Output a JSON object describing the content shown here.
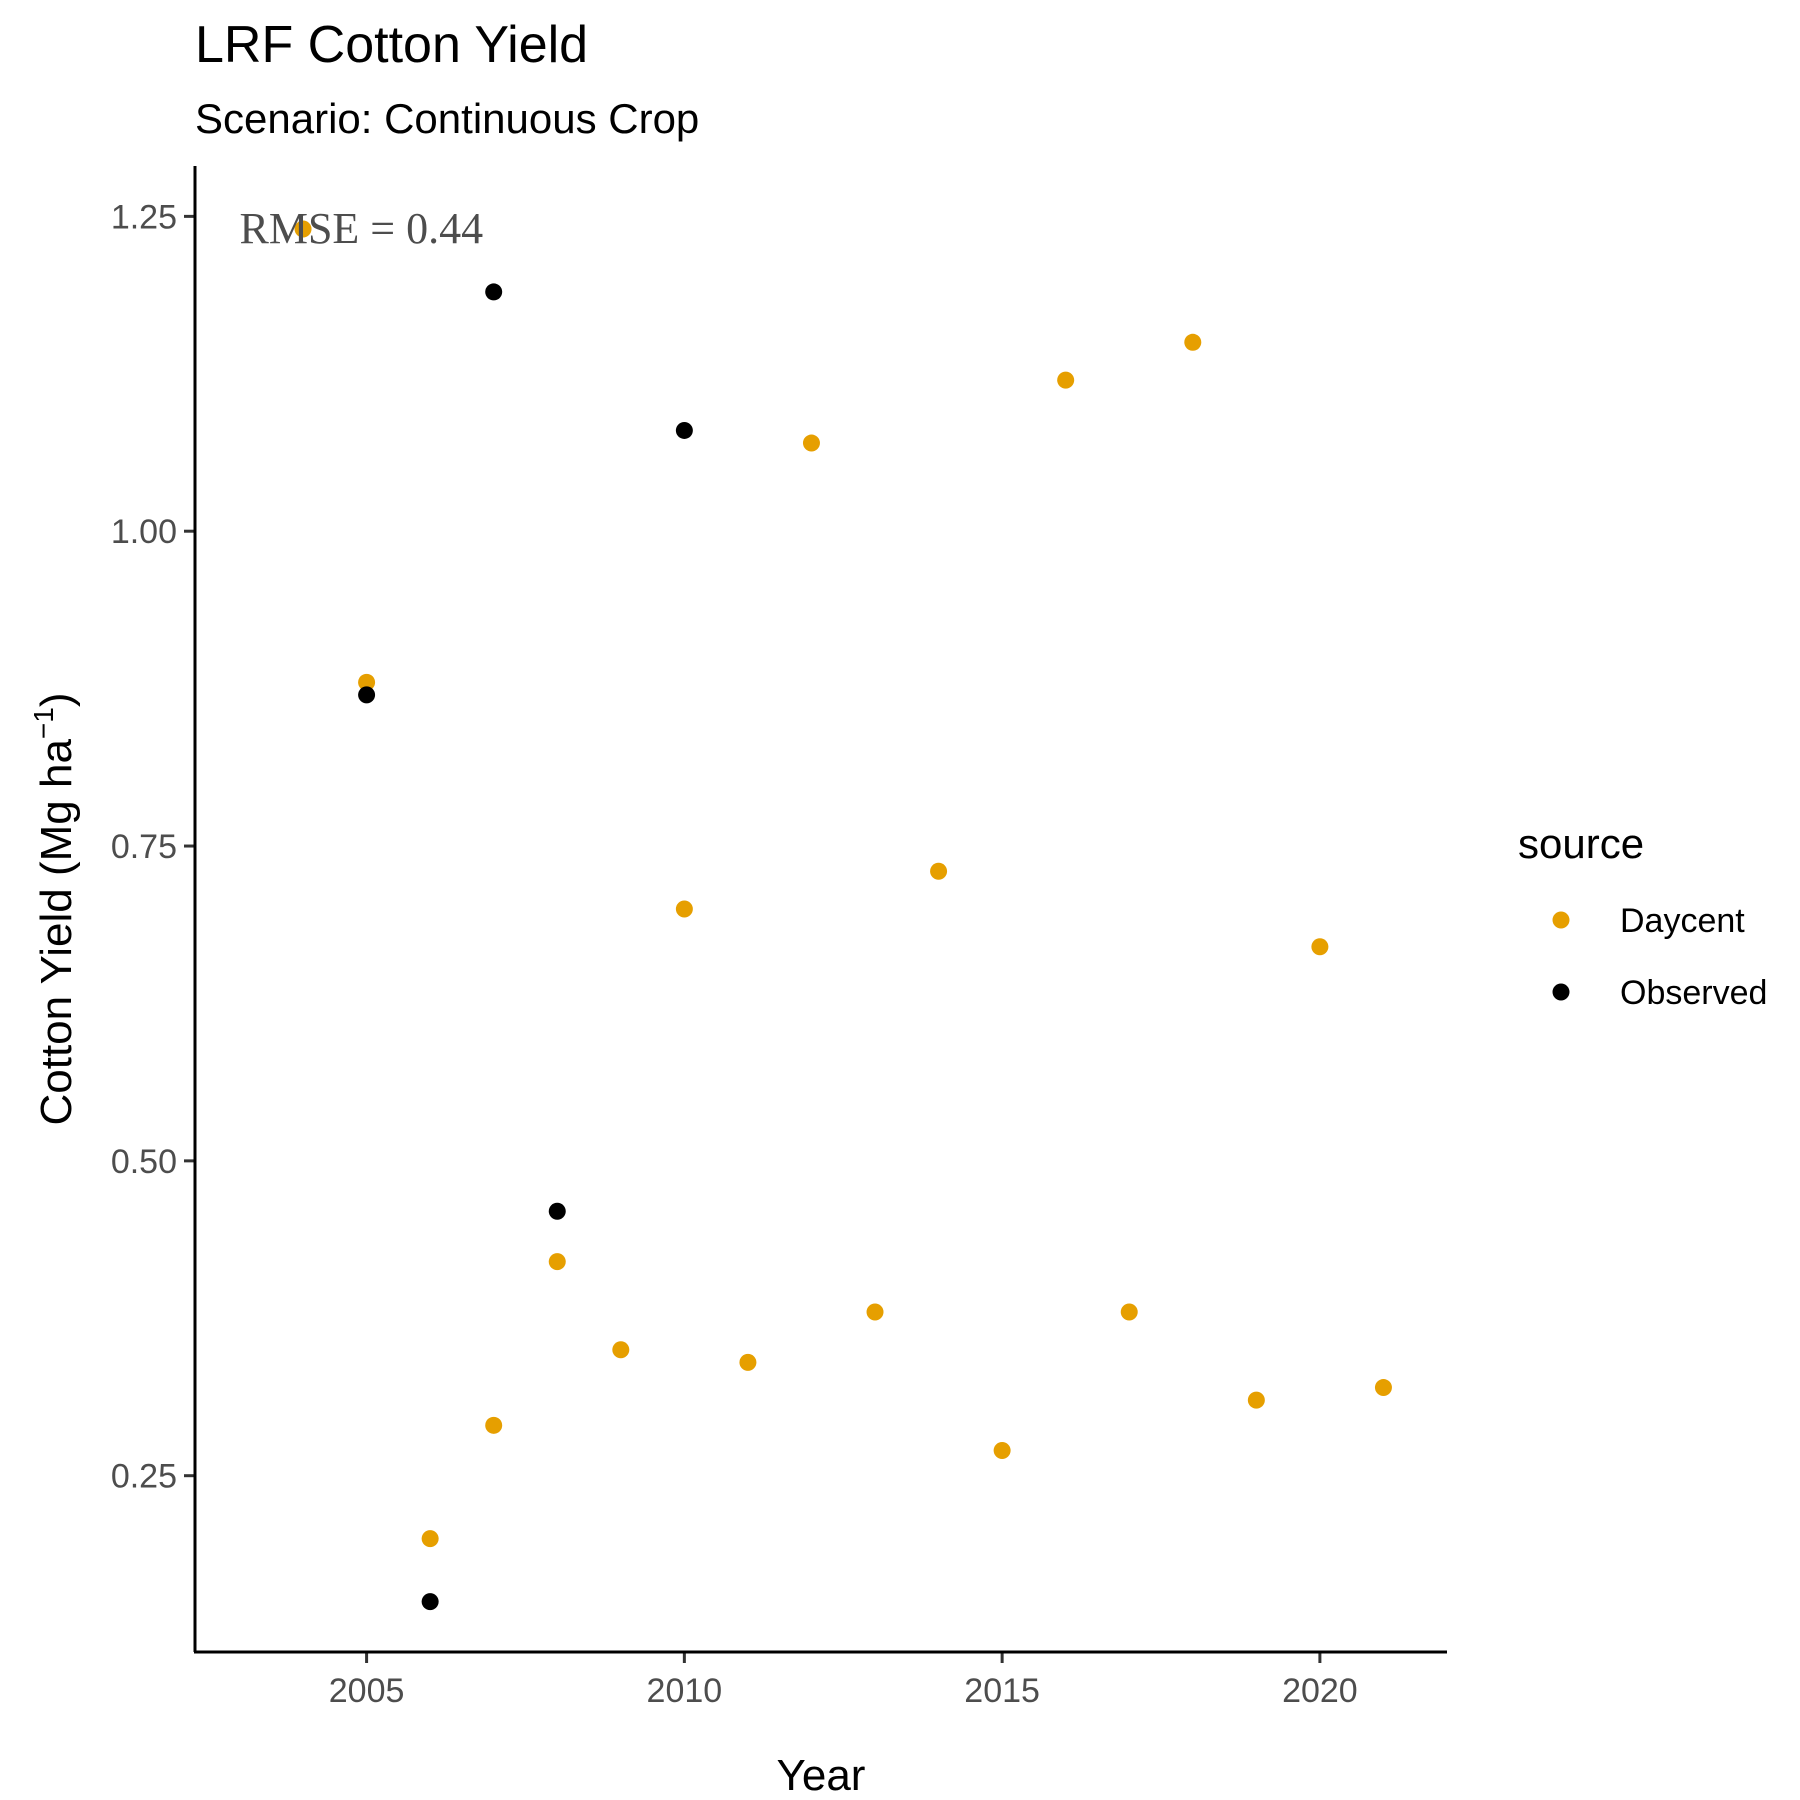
{
  "chart_data": {
    "type": "scatter",
    "title": "LRF Cotton Yield",
    "subtitle": "Scenario: Continuous Crop",
    "xlabel": "Year",
    "ylabel_main": "Cotton Yield (Mg ha",
    "ylabel_sup": "−1",
    "ylabel_close": ")",
    "xlim": [
      2002.3,
      2022.0
    ],
    "ylim": [
      0.11,
      1.29
    ],
    "x_ticks": [
      2005,
      2010,
      2015,
      2020
    ],
    "x_tick_labels": [
      "2005",
      "2010",
      "2015",
      "2020"
    ],
    "y_ticks": [
      0.25,
      0.5,
      0.75,
      1.0,
      1.25
    ],
    "y_tick_labels": [
      "0.25",
      "0.50",
      "0.75",
      "1.00",
      "1.25"
    ],
    "grid": false,
    "legend": {
      "title": "source",
      "position": "right"
    },
    "annotation": {
      "text": "RMSE = 0.44",
      "x": 2003.0,
      "y": 1.24
    },
    "series": [
      {
        "name": "Daycent",
        "color": "#E69F00",
        "x": [
          2004,
          2005,
          2006,
          2007,
          2008,
          2009,
          2010,
          2011,
          2012,
          2013,
          2014,
          2015,
          2016,
          2017,
          2018,
          2019,
          2020,
          2021
        ],
        "y": [
          1.24,
          0.88,
          0.2,
          0.29,
          0.42,
          0.35,
          0.7,
          0.34,
          1.07,
          0.38,
          0.73,
          0.27,
          1.12,
          0.38,
          1.15,
          0.31,
          0.67,
          0.32
        ]
      },
      {
        "name": "Observed",
        "color": "#000000",
        "x": [
          2005,
          2006,
          2007,
          2008,
          2010
        ],
        "y": [
          0.87,
          0.15,
          1.19,
          0.46,
          1.08
        ]
      }
    ]
  }
}
